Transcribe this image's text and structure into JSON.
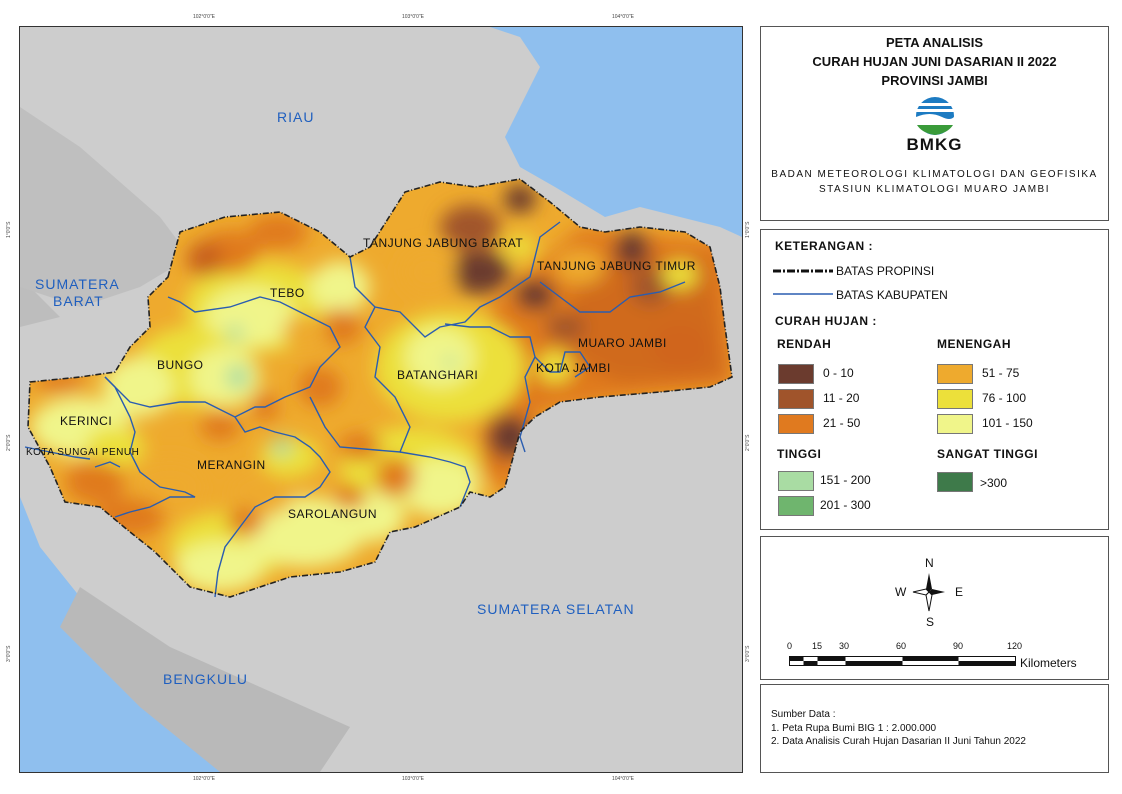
{
  "title": {
    "line1": "PETA ANALISIS",
    "line2": "CURAH HUJAN JUNI DASARIAN II 2022",
    "line3": "PROVINSI JAMBI",
    "logo_text": "BMKG",
    "agency_line1": "BADAN METEOROLOGI KLIMATOLOGI DAN GEOFISIKA",
    "agency_line2": "STASIUN KLIMATOLOGI MUARO JAMBI"
  },
  "map": {
    "provinces": [
      "RIAU",
      "SUMATERA\nBARAT",
      "SUMATERA SELATAN",
      "BENGKULU"
    ],
    "province_riau": "RIAU",
    "province_sumbar_1": "SUMATERA",
    "province_sumbar_2": "BARAT",
    "province_sumsel": "SUMATERA SELATAN",
    "province_bengkulu": "BENGKULU",
    "kabupaten": {
      "tanjab_barat": "TANJUNG JABUNG BARAT",
      "tanjab_timur": "TANJUNG JABUNG TIMUR",
      "tebo": "TEBO",
      "bungo": "BUNGO",
      "batanghari": "BATANGHARI",
      "muaro_jambi": "MUARO JAMBI",
      "kota_jambi": "KOTA JAMBI",
      "kerinci": "KERINCI",
      "sungai_penuh": "KOTA SUNGAI PENUH",
      "merangin": "MERANGIN",
      "sarolangun": "SAROLANGUN"
    },
    "ticks": {
      "top": [
        "102°0'0\"E",
        "103°0'0\"E",
        "104°0'0\"E"
      ],
      "bottom": [
        "102°0'0\"E",
        "103°0'0\"E",
        "104°0'0\"E"
      ],
      "left": [
        "1°0'0\"S",
        "2°0'0\"S",
        "3°0'0\"S"
      ],
      "right": [
        "1°0'0\"S",
        "2°0'0\"S",
        "3°0'0\"S"
      ]
    },
    "colors": {
      "sea": "#8fbfee",
      "land_outside": "#c9c9c9",
      "r0_10": "#6b3b2e",
      "r11_20": "#a0542b",
      "r21_50": "#e07a1f",
      "r51_75": "#eeaa2e",
      "r76_100": "#ece03a",
      "r101_150": "#f0f58a",
      "r151_200": "#a9dca3",
      "r201_300": "#6fb56e",
      "r300": "#3e7a4a"
    }
  },
  "legend": {
    "heading": "KETERANGAN :",
    "batas_propinsi": "BATAS PROPINSI",
    "batas_kabupaten": "BATAS KABUPATEN",
    "curah_hujan": "CURAH HUJAN :",
    "rendah": "RENDAH",
    "menengah": "MENENGAH",
    "tinggi": "TINGGI",
    "sangat_tinggi": "SANGAT TINGGI",
    "classes": {
      "c1": "0 - 10",
      "c2": "11 - 20",
      "c3": "21 - 50",
      "c4": "51 - 75",
      "c5": "76 - 100",
      "c6": "101 - 150",
      "c7": "151 - 200",
      "c8": "201 - 300",
      "c9": ">300"
    }
  },
  "north": {
    "n": "N",
    "s": "S",
    "e": "E",
    "w": "W"
  },
  "scale": {
    "labels": [
      "0",
      "15",
      "30",
      "60",
      "90",
      "120"
    ],
    "l0": "0",
    "l15": "15",
    "l30": "30",
    "l60": "60",
    "l90": "90",
    "l120": "120",
    "unit": "Kilometers"
  },
  "source": {
    "heading": "Sumber Data :",
    "line1": "1. Peta Rupa Bumi BIG 1 : 2.000.000",
    "line2": "2. Data Analisis Curah Hujan Dasarian II Juni Tahun 2022"
  }
}
